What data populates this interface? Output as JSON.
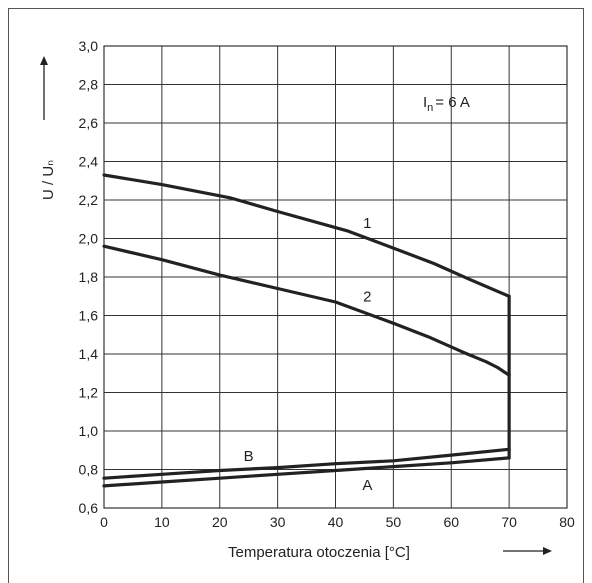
{
  "chart_data": {
    "type": "line",
    "title": "",
    "xlabel": "Temperatura otoczenia [°C]",
    "ylabel": "U / Uₙ",
    "xlim": [
      0,
      80
    ],
    "ylim": [
      0.6,
      3.0
    ],
    "x_ticks": [
      0,
      10,
      20,
      30,
      40,
      50,
      60,
      70,
      80
    ],
    "x_tick_labels": [
      "0",
      "10",
      "20",
      "30",
      "40",
      "50",
      "60",
      "70",
      "80"
    ],
    "y_ticks": [
      0.6,
      0.8,
      1.0,
      1.2,
      1.4,
      1.6,
      1.8,
      2.0,
      2.2,
      2.4,
      2.6,
      2.8,
      3.0
    ],
    "y_tick_labels": [
      "0,6",
      "0,8",
      "1,0",
      "1,2",
      "1,4",
      "1,6",
      "1,8",
      "2,0",
      "2,2",
      "2,4",
      "2,6",
      "2,8",
      "3,0"
    ],
    "grid": true,
    "annotation": {
      "main": "I",
      "sub": "n",
      "rest": "= 6 A"
    },
    "line_color": "#222222",
    "grid_color": "#333333",
    "series": [
      {
        "name": "1",
        "x": [
          0,
          10,
          22,
          30,
          42,
          50,
          57,
          63,
          70
        ],
        "y": [
          2.33,
          2.28,
          2.21,
          2.14,
          2.04,
          1.95,
          1.87,
          1.79,
          1.7
        ]
      },
      {
        "name": "2",
        "x": [
          0,
          10,
          20,
          30,
          40,
          50,
          56,
          62,
          66,
          68,
          70
        ],
        "y": [
          1.96,
          1.89,
          1.81,
          1.74,
          1.67,
          1.56,
          1.49,
          1.41,
          1.36,
          1.33,
          1.29
        ]
      },
      {
        "name": "B",
        "x": [
          0,
          10,
          20,
          30,
          40,
          50,
          60,
          70
        ],
        "y": [
          0.755,
          0.775,
          0.795,
          0.81,
          0.83,
          0.845,
          0.875,
          0.905
        ]
      },
      {
        "name": "A",
        "x": [
          0,
          10,
          20,
          30,
          40,
          50,
          60,
          70
        ],
        "y": [
          0.715,
          0.735,
          0.755,
          0.775,
          0.795,
          0.815,
          0.835,
          0.86
        ]
      }
    ],
    "vertical_segment": {
      "x": 70,
      "y": [
        0.86,
        1.7
      ]
    },
    "label_positions": {
      "1": [
        45.5,
        2.08
      ],
      "2": [
        45.5,
        1.7
      ],
      "B": [
        25,
        0.87
      ],
      "A": [
        45.5,
        0.72
      ]
    }
  }
}
